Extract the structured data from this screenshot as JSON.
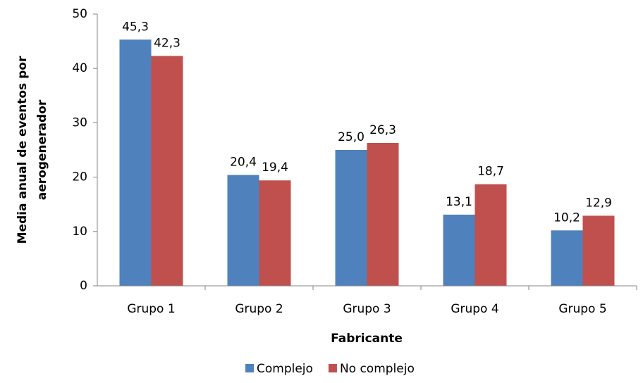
{
  "chart_data": {
    "type": "bar",
    "x_label": "Fabricante",
    "y_label": [
      "Media anual de eventos por",
      "aerogenerador"
    ],
    "categories": [
      "Grupo 1",
      "Grupo 2",
      "Grupo 3",
      "Grupo 4",
      "Grupo 5"
    ],
    "series": [
      {
        "name": "Complejo",
        "color": "#4f81bd",
        "values": [
          45.3,
          20.4,
          25.0,
          13.1,
          10.2
        ],
        "value_labels": [
          "45,3",
          "20,4",
          "25,0",
          "13,1",
          "10,2"
        ]
      },
      {
        "name": "No complejo",
        "color": "#c0504d",
        "values": [
          42.3,
          19.4,
          26.3,
          18.7,
          12.9
        ],
        "value_labels": [
          "42,3",
          "19,4",
          "26,3",
          "18,7",
          "12,9"
        ]
      }
    ],
    "ylim": [
      0,
      50
    ],
    "yticks": [
      0,
      10,
      20,
      30,
      40,
      50
    ],
    "grid": false,
    "legend": "bottom"
  }
}
